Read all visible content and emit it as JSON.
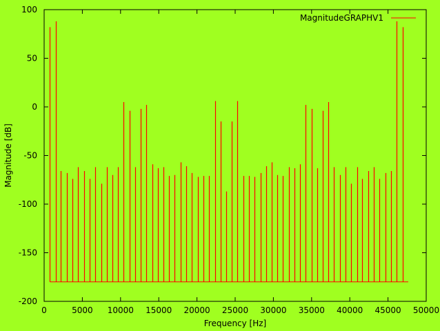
{
  "chart_data": {
    "type": "line",
    "title": "",
    "xlabel": "Frequency [Hz]",
    "ylabel": "Magnitude [dB]",
    "xlim": [
      0,
      50000
    ],
    "ylim": [
      -200,
      100
    ],
    "xticks": [
      0,
      5000,
      10000,
      15000,
      20000,
      25000,
      30000,
      35000,
      40000,
      45000,
      50000
    ],
    "yticks": [
      100,
      50,
      0,
      -50,
      -100,
      -150,
      -200
    ],
    "grid": false,
    "legend": "top-right",
    "colors": {
      "background": "#a0ff20",
      "series": "#ff0000",
      "axes": "#000000"
    },
    "baseline": -180,
    "series": [
      {
        "name": "MagnitudeGRAPHV1",
        "spikes": [
          {
            "x": 750,
            "y": 82
          },
          {
            "x": 1500,
            "y": 88
          },
          {
            "x": 2200,
            "y": -66
          },
          {
            "x": 3000,
            "y": -68
          },
          {
            "x": 3700,
            "y": -74
          },
          {
            "x": 4450,
            "y": -62
          },
          {
            "x": 5200,
            "y": -66
          },
          {
            "x": 5950,
            "y": -74
          },
          {
            "x": 6700,
            "y": -62
          },
          {
            "x": 7450,
            "y": -79
          },
          {
            "x": 8200,
            "y": -62
          },
          {
            "x": 8950,
            "y": -70
          },
          {
            "x": 9650,
            "y": -62
          },
          {
            "x": 10400,
            "y": 5
          },
          {
            "x": 11150,
            "y": -4
          },
          {
            "x": 11900,
            "y": -62
          },
          {
            "x": 12650,
            "y": -2
          },
          {
            "x": 13400,
            "y": 2
          },
          {
            "x": 14150,
            "y": -59
          },
          {
            "x": 14900,
            "y": -63
          },
          {
            "x": 15650,
            "y": -62
          },
          {
            "x": 16350,
            "y": -71
          },
          {
            "x": 17100,
            "y": -70
          },
          {
            "x": 17850,
            "y": -57
          },
          {
            "x": 18600,
            "y": -61
          },
          {
            "x": 19350,
            "y": -68
          },
          {
            "x": 20100,
            "y": -72
          },
          {
            "x": 20850,
            "y": -71
          },
          {
            "x": 21600,
            "y": -71
          },
          {
            "x": 22350,
            "y": 6
          },
          {
            "x": 23100,
            "y": -15
          },
          {
            "x": 23800,
            "y": -87
          },
          {
            "x": 24550,
            "y": -15
          },
          {
            "x": 25300,
            "y": 6
          },
          {
            "x": 26050,
            "y": -71
          },
          {
            "x": 26800,
            "y": -71
          },
          {
            "x": 27550,
            "y": -72
          },
          {
            "x": 28300,
            "y": -68
          },
          {
            "x": 29050,
            "y": -61
          },
          {
            "x": 29750,
            "y": -57
          },
          {
            "x": 30500,
            "y": -70
          },
          {
            "x": 31250,
            "y": -71
          },
          {
            "x": 32000,
            "y": -62
          },
          {
            "x": 32750,
            "y": -63
          },
          {
            "x": 33500,
            "y": -59
          },
          {
            "x": 34250,
            "y": 2
          },
          {
            "x": 35000,
            "y": -2
          },
          {
            "x": 35700,
            "y": -63
          },
          {
            "x": 36450,
            "y": -4
          },
          {
            "x": 37200,
            "y": 5
          },
          {
            "x": 37950,
            "y": -62
          },
          {
            "x": 38700,
            "y": -70
          },
          {
            "x": 39450,
            "y": -62
          },
          {
            "x": 40200,
            "y": -79
          },
          {
            "x": 40950,
            "y": -62
          },
          {
            "x": 41650,
            "y": -74
          },
          {
            "x": 42400,
            "y": -66
          },
          {
            "x": 43150,
            "y": -62
          },
          {
            "x": 43900,
            "y": -74
          },
          {
            "x": 44650,
            "y": -68
          },
          {
            "x": 45400,
            "y": -66
          },
          {
            "x": 46150,
            "y": 88
          },
          {
            "x": 46900,
            "y": 82
          }
        ],
        "x_end": 47650
      }
    ]
  }
}
